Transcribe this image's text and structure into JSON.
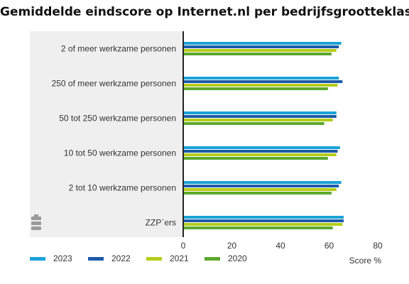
{
  "chart_data": {
    "type": "bar",
    "orientation": "horizontal",
    "title": "Gemiddelde eindscore op Internet.nl per bedrijfsgrootteklasse",
    "categories": [
      "2 of meer werkzame personen",
      "250 of meer werkzame personen",
      "50 tot 250 werkzame personen",
      "10 tot 50 werkzame personen",
      "2 tot 10 werkzame personen",
      "ZZP`ers"
    ],
    "series": [
      {
        "name": "2023",
        "color": "#1aa3d6",
        "values": [
          65,
          64,
          63,
          64.5,
          65,
          66
        ]
      },
      {
        "name": "2022",
        "color": "#1c5ba8",
        "values": [
          64,
          65.5,
          63,
          63.5,
          64,
          66
        ]
      },
      {
        "name": "2021",
        "color": "#b5cc18",
        "values": [
          63,
          63.5,
          61.5,
          63,
          63,
          65.5
        ]
      },
      {
        "name": "2020",
        "color": "#5da82e",
        "values": [
          61,
          59.5,
          58,
          59.5,
          61,
          61.5
        ]
      }
    ],
    "xlabel": "Score %",
    "xlim": [
      0,
      80
    ],
    "xticks": [
      0,
      20,
      40,
      60,
      80
    ],
    "grid": false,
    "legend": "bottom"
  }
}
